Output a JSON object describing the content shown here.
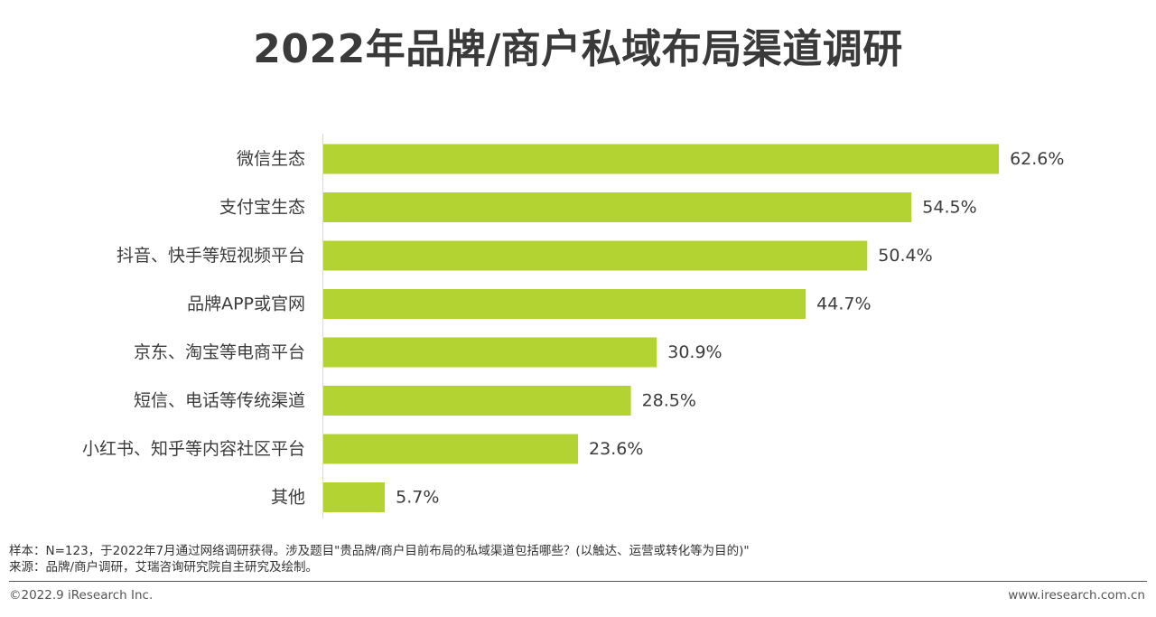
{
  "header": {
    "title": "2022年品牌/商户私域布局渠道调研"
  },
  "chart_data": {
    "type": "bar",
    "orientation": "horizontal",
    "title": "2022年品牌/商户私域布局渠道调研",
    "categories": [
      "微信生态",
      "支付宝生态",
      "抖音、快手等短视频平台",
      "品牌APP或官网",
      "京东、淘宝等电商平台",
      "短信、电话等传统渠道",
      "小红书、知乎等内容社区平台",
      "其他"
    ],
    "values": [
      62.6,
      54.5,
      50.4,
      44.7,
      30.9,
      28.5,
      23.6,
      5.7
    ],
    "value_labels": [
      "62.6%",
      "54.5%",
      "50.4%",
      "44.7%",
      "30.9%",
      "28.5%",
      "23.6%",
      "5.7%"
    ],
    "unit": "%",
    "xlim": [
      0,
      100
    ],
    "bar_color": "#b3d333",
    "grid": false,
    "legend": "none"
  },
  "footer": {
    "sample_note": "样本：N=123，于2022年7月通过网络调研获得。涉及题目\"贵品牌/商户目前布局的私域渠道包括哪些？(以触达、运营或转化等为目的)\"",
    "source_note": "来源：品牌/商户调研，艾瑞咨询研究院自主研究及绘制。",
    "copyright": "©2022.9 iResearch Inc.",
    "website": "www.iresearch.com.cn"
  }
}
